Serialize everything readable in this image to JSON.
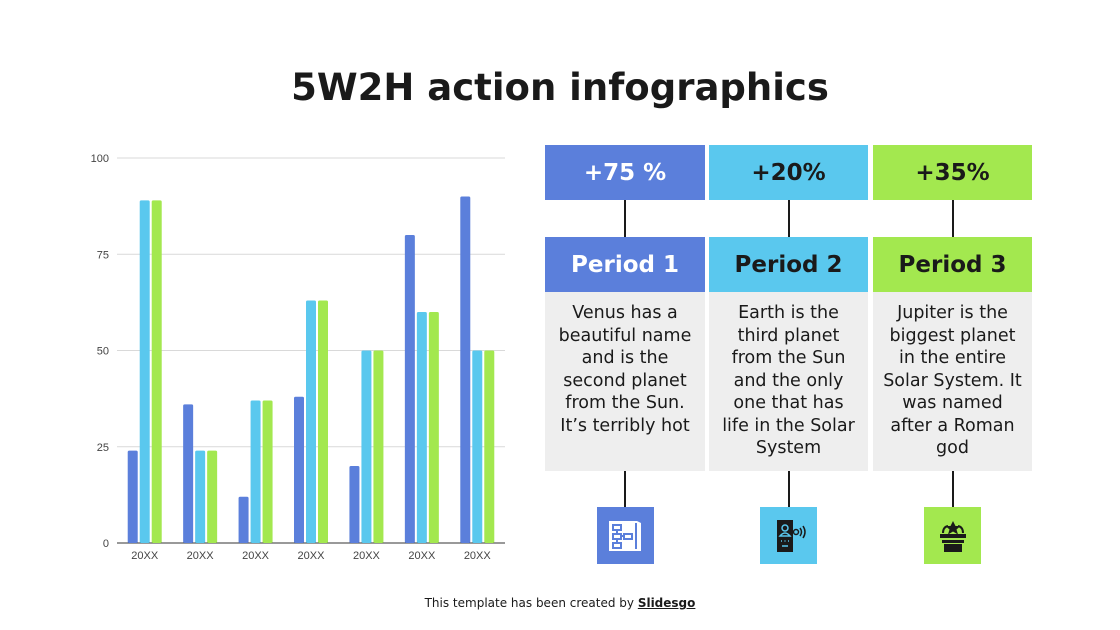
{
  "title": "5W2H action infographics",
  "colors": {
    "blue": "#5B7FDB",
    "cyan": "#5AC8EE",
    "green": "#A3E84F"
  },
  "chart_data": {
    "type": "bar",
    "categories": [
      "20XX",
      "20XX",
      "20XX",
      "20XX",
      "20XX",
      "20XX",
      "20XX"
    ],
    "series": [
      {
        "values": [
          24,
          36,
          12,
          38,
          20,
          80,
          90
        ],
        "color": "#5B7FDB"
      },
      {
        "values": [
          89,
          24,
          37,
          63,
          50,
          60,
          50
        ],
        "color": "#5AC8EE"
      },
      {
        "values": [
          89,
          24,
          37,
          63,
          50,
          60,
          50
        ],
        "color": "#A3E84F"
      }
    ],
    "ylim": [
      0,
      100
    ],
    "yticks": [
      0,
      25,
      50,
      75,
      100
    ],
    "grid": true
  },
  "periods": [
    {
      "stat": "+75 %",
      "label": "Period 1",
      "text": "Venus has a beautiful name and is the second planet from the Sun. It’s terribly hot",
      "color": "#5B7FDB",
      "text_color": "#ffffff",
      "icon": "flowchart-icon"
    },
    {
      "stat": "+20%",
      "label": "Period 2",
      "text": "Earth is the third planet from the Sun and the only one that has life in the Solar System",
      "color": "#5AC8EE",
      "text_color": "#1a1a1a",
      "icon": "smartphone-contact-icon"
    },
    {
      "stat": "+35%",
      "label": "Period 3",
      "text": "Jupiter is the biggest planet in the entire Solar System. It was named after a Roman god",
      "color": "#A3E84F",
      "text_color": "#1a1a1a",
      "icon": "podium-star-icon"
    }
  ],
  "footer": {
    "text": "This template has been created by ",
    "brand": "Slidesgo"
  }
}
